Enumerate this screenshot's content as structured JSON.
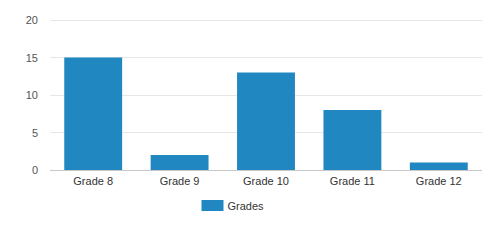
{
  "chart_data": {
    "type": "bar",
    "categories": [
      "Grade 8",
      "Grade 9",
      "Grade 10",
      "Grade 11",
      "Grade 12"
    ],
    "series": [
      {
        "name": "Grades",
        "color": "#2187c0",
        "values": [
          15,
          2,
          13,
          8,
          1
        ]
      }
    ],
    "ylim": [
      0,
      20
    ],
    "yticks": [
      0,
      5,
      10,
      15,
      20
    ],
    "grid": true,
    "legend": "bottom"
  }
}
